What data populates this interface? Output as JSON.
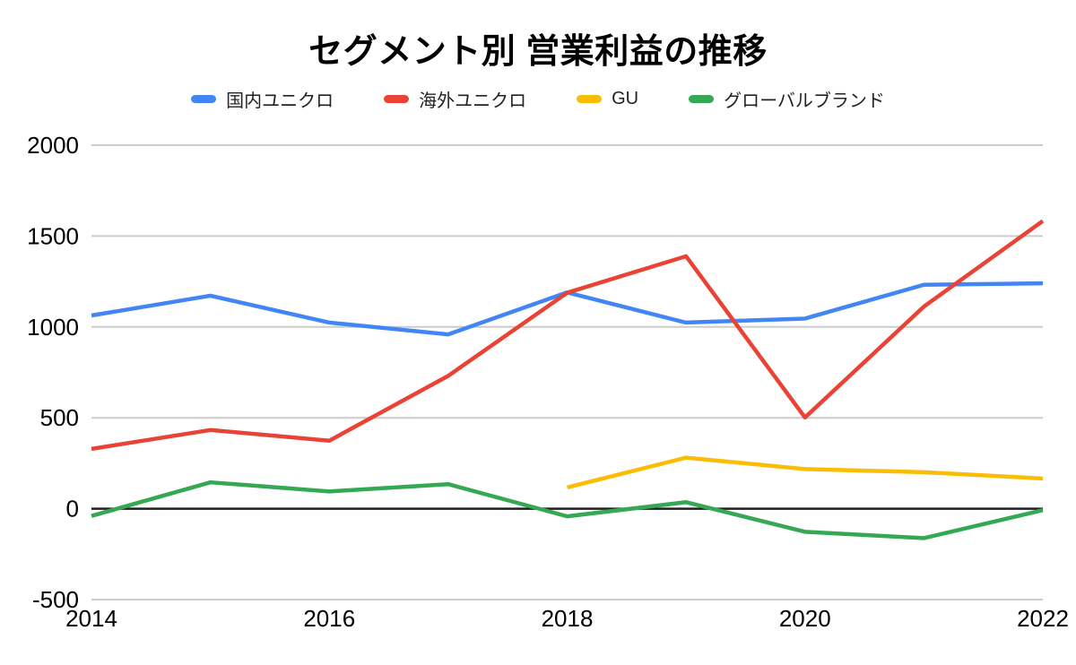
{
  "chart_data": {
    "type": "line",
    "title": "セグメント別 営業利益の推移",
    "x": [
      2014,
      2015,
      2016,
      2017,
      2018,
      2019,
      2020,
      2021,
      2022
    ],
    "x_tick_labels": [
      "2014",
      "2016",
      "2018",
      "2020",
      "2022"
    ],
    "y_ticks": [
      2000,
      1500,
      1000,
      500,
      0,
      -500
    ],
    "ylim": [
      -500,
      2000
    ],
    "xlabel": "",
    "ylabel": "",
    "grid": true,
    "legend_position": "top",
    "series": [
      {
        "name": "国内ユニクロ",
        "color": "#4285F4",
        "values": [
          1063,
          1172,
          1024,
          959,
          1190,
          1024,
          1046,
          1232,
          1240
        ]
      },
      {
        "name": "海外ユニクロ",
        "color": "#EA4335",
        "values": [
          329,
          433,
          374,
          731,
          1188,
          1389,
          502,
          1112,
          1583
        ]
      },
      {
        "name": "GU",
        "color": "#FBBC04",
        "values": [
          null,
          null,
          null,
          null,
          117,
          281,
          218,
          201,
          166
        ]
      },
      {
        "name": "グローバルブランド",
        "color": "#34A853",
        "values": [
          -40,
          145,
          95,
          135,
          -42,
          36,
          -127,
          -162,
          -8
        ]
      }
    ]
  },
  "colors": {
    "background": "#ffffff",
    "grid": "#cccccc",
    "zero_line": "#1f1f1f",
    "tick_text": "#000000",
    "legend_text": "#222222"
  }
}
